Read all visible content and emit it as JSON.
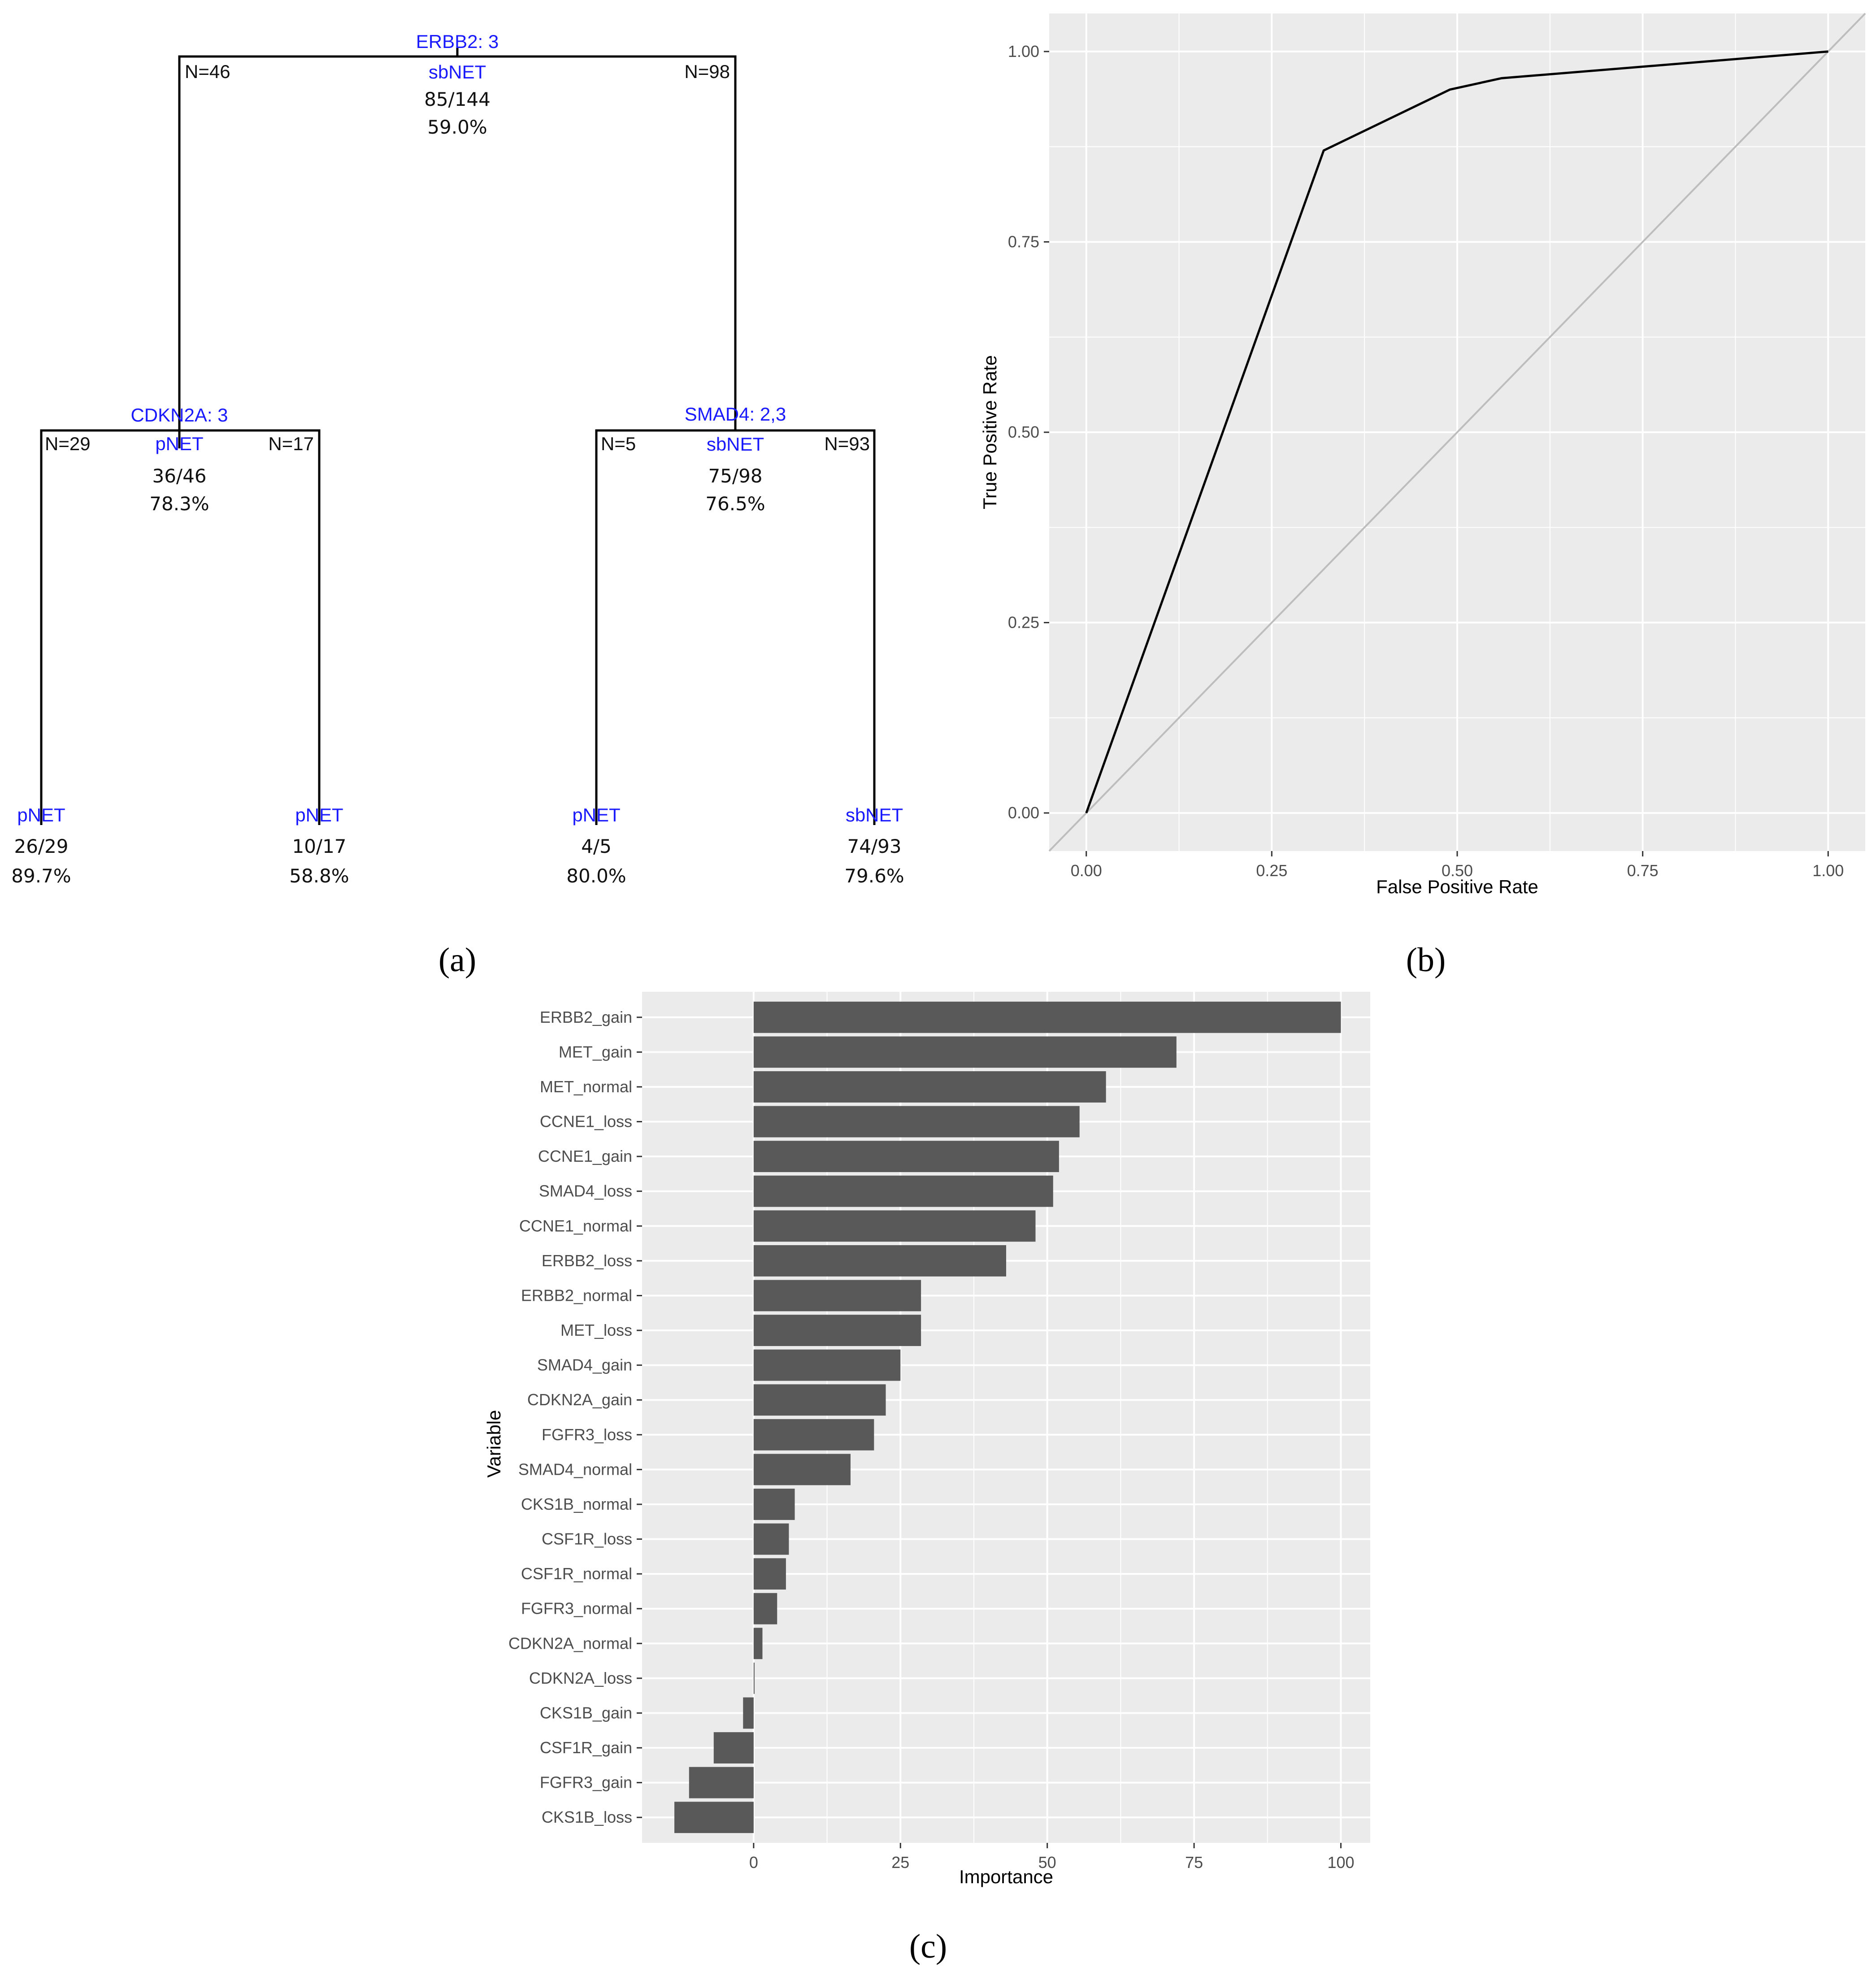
{
  "panels": {
    "a": "(a)",
    "b": "(b)",
    "c": "(c)"
  },
  "tree": {
    "root": {
      "split": "ERBB2: 3",
      "cls": "sbNET",
      "frac": "85/144",
      "pct": "59.0%",
      "left_n": "N=46",
      "right_n": "N=98"
    },
    "left": {
      "split": "CDKN2A: 3",
      "cls": "pNET",
      "frac": "36/46",
      "pct": "78.3%",
      "left_n": "N=29",
      "right_n": "N=17"
    },
    "right": {
      "split": "SMAD4: 2,3",
      "cls": "sbNET",
      "frac": "75/98",
      "pct": "76.5%",
      "left_n": "N=5",
      "right_n": "N=93"
    },
    "leaves": [
      {
        "cls": "pNET",
        "frac": "26/29",
        "pct": "89.7%"
      },
      {
        "cls": "pNET",
        "frac": "10/17",
        "pct": "58.8%"
      },
      {
        "cls": "pNET",
        "frac": "4/5",
        "pct": "80.0%"
      },
      {
        "cls": "sbNET",
        "frac": "74/93",
        "pct": "79.6%"
      }
    ]
  },
  "chart_data": [
    {
      "type": "line",
      "title": "",
      "xlabel": "False Positive Rate",
      "ylabel": "True Positive Rate",
      "xlim": [
        -0.05,
        1.05
      ],
      "ylim": [
        -0.05,
        1.05
      ],
      "xticks": [
        "0.00",
        "0.25",
        "0.50",
        "0.75",
        "1.00"
      ],
      "yticks": [
        "0.00",
        "0.25",
        "0.50",
        "0.75",
        "1.00"
      ],
      "grid": true,
      "series": [
        {
          "name": "ROC",
          "color": "#000000",
          "x": [
            0.0,
            0.32,
            0.49,
            0.56,
            1.0
          ],
          "y": [
            0.0,
            0.87,
            0.95,
            0.965,
            1.0
          ]
        },
        {
          "name": "reference",
          "color": "#bdbdbd",
          "x": [
            -0.05,
            1.05
          ],
          "y": [
            -0.05,
            1.05
          ]
        }
      ]
    },
    {
      "type": "bar",
      "orientation": "horizontal",
      "title": "",
      "xlabel": "Importance",
      "ylabel": "Variable",
      "xlim": [
        -19,
        105
      ],
      "xticks": [
        "0",
        "25",
        "50",
        "75",
        "100"
      ],
      "grid": true,
      "bar_color": "#595959",
      "categories": [
        "ERBB2_gain",
        "MET_gain",
        "MET_normal",
        "CCNE1_loss",
        "CCNE1_gain",
        "SMAD4_loss",
        "CCNE1_normal",
        "ERBB2_loss",
        "ERBB2_normal",
        "MET_loss",
        "SMAD4_gain",
        "CDKN2A_gain",
        "FGFR3_loss",
        "SMAD4_normal",
        "CKS1B_normal",
        "CSF1R_loss",
        "CSF1R_normal",
        "FGFR3_normal",
        "CDKN2A_normal",
        "CDKN2A_loss",
        "CKS1B_gain",
        "CSF1R_gain",
        "FGFR3_gain",
        "CKS1B_loss"
      ],
      "values": [
        100,
        72,
        60,
        55.5,
        52,
        51,
        48,
        43,
        28.5,
        28.5,
        25,
        22.5,
        20.5,
        16.5,
        7,
        6,
        5.5,
        4,
        1.5,
        0,
        -1.8,
        -6.8,
        -11,
        -13.5
      ]
    }
  ]
}
